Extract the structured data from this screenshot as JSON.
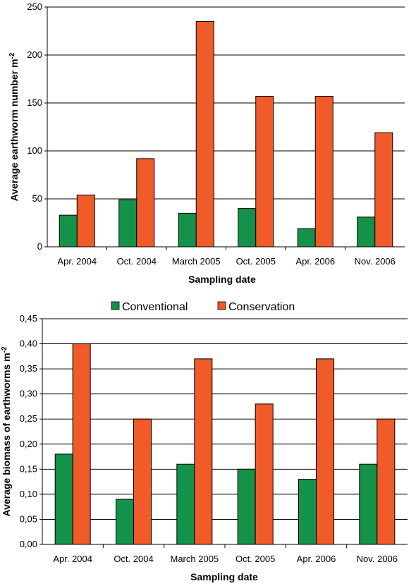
{
  "colors": {
    "conventional": "#14924a",
    "conservation": "#f15a29"
  },
  "legend": {
    "conventional": "Conventional",
    "conservation": "Conservation"
  },
  "chart_data": [
    {
      "type": "bar",
      "categories": [
        "Apr. 2004",
        "Oct. 2004",
        "March 2005",
        "Oct. 2005",
        "Apr. 2006",
        "Nov. 2006"
      ],
      "series": [
        {
          "name": "Conventional",
          "values": [
            33,
            49,
            35,
            40,
            19,
            31
          ]
        },
        {
          "name": "Conservation",
          "values": [
            54,
            92,
            235,
            157,
            157,
            119
          ]
        }
      ],
      "ylim": [
        0,
        250
      ],
      "yticks": [
        "0",
        "50",
        "100",
        "150",
        "200",
        "250"
      ],
      "ytick_values": [
        0,
        50,
        100,
        150,
        200,
        250
      ],
      "xlabel": "Sampling date",
      "ylabel": "Average earthworm number m",
      "ylabel_sup": "-2",
      "grid": true,
      "legend": "none"
    },
    {
      "type": "bar",
      "categories": [
        "Apr. 2004",
        "Oct. 2004",
        "March 2005",
        "Oct. 2005",
        "Apr. 2006",
        "Nov. 2006"
      ],
      "series": [
        {
          "name": "Conventional",
          "values": [
            0.18,
            0.09,
            0.16,
            0.15,
            0.13,
            0.16
          ]
        },
        {
          "name": "Conservation",
          "values": [
            0.4,
            0.25,
            0.37,
            0.28,
            0.37,
            0.25
          ]
        }
      ],
      "ylim": [
        0,
        0.45
      ],
      "yticks": [
        "0,00",
        "0,05",
        "0,10",
        "0,15",
        "0,20",
        "0,25",
        "0,30",
        "0,35",
        "0,40",
        "0,45"
      ],
      "ytick_values": [
        0,
        0.05,
        0.1,
        0.15,
        0.2,
        0.25,
        0.3,
        0.35,
        0.4,
        0.45
      ],
      "xlabel": "Sampling date",
      "ylabel": "Average biomass of earthworms m",
      "ylabel_sup": "-2",
      "grid": true,
      "legend": "top-center"
    }
  ]
}
